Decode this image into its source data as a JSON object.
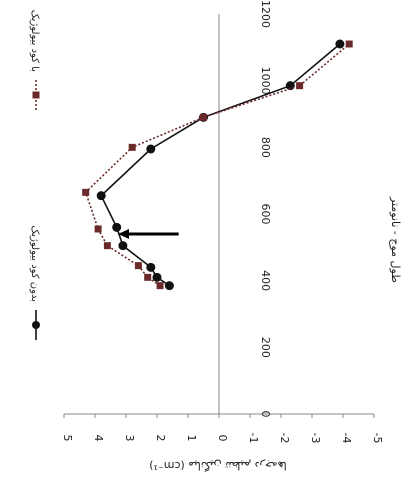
{
  "chart_data": {
    "type": "line",
    "orientation": "rotated-90-clockwise",
    "xlabel": "طول موج - نانومتر",
    "ylabel": "میانگین تنظیم درجه‌ها (cm⁻¹)",
    "xlim": [
      0,
      1200
    ],
    "ylim": [
      -5,
      5
    ],
    "x_ticks": [
      "0",
      "200",
      "400",
      "600",
      "800",
      "1000",
      "1200"
    ],
    "y_ticks": [
      "-5",
      "-4",
      "-3",
      "-2",
      "-1",
      "0",
      "1",
      "2",
      "3",
      "4",
      "5"
    ],
    "grid": false,
    "legend_position": "top",
    "series": [
      {
        "name": "بدون کود بیولوژیک",
        "style": "solid",
        "marker": "circle",
        "color": "#111111",
        "points": [
          {
            "x": 385,
            "y": 1.6
          },
          {
            "x": 410,
            "y": 2.0
          },
          {
            "x": 440,
            "y": 2.2
          },
          {
            "x": 505,
            "y": 3.1
          },
          {
            "x": 560,
            "y": 3.3
          },
          {
            "x": 655,
            "y": 3.8
          },
          {
            "x": 795,
            "y": 2.2
          },
          {
            "x": 890,
            "y": 0.5
          },
          {
            "x": 985,
            "y": -2.3
          },
          {
            "x": 1110,
            "y": -3.9
          }
        ]
      },
      {
        "name": "با کود بیولوژیک",
        "style": "dotted",
        "marker": "square",
        "color": "#6b2a2a",
        "points": [
          {
            "x": 385,
            "y": 1.9
          },
          {
            "x": 410,
            "y": 2.3
          },
          {
            "x": 445,
            "y": 2.6
          },
          {
            "x": 505,
            "y": 3.6
          },
          {
            "x": 555,
            "y": 3.9
          },
          {
            "x": 665,
            "y": 4.3
          },
          {
            "x": 800,
            "y": 2.8
          },
          {
            "x": 890,
            "y": 0.5
          },
          {
            "x": 985,
            "y": -2.6
          },
          {
            "x": 1110,
            "y": -4.2
          }
        ]
      }
    ],
    "annotation": "arrow"
  }
}
